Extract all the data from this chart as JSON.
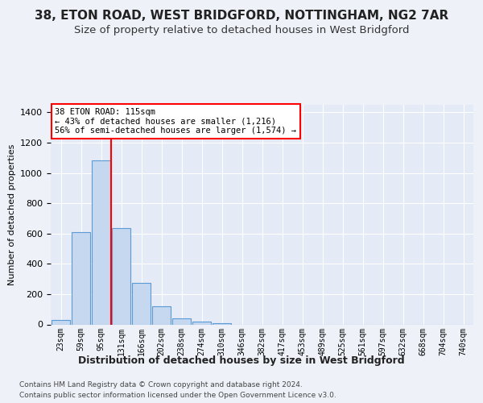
{
  "title": "38, ETON ROAD, WEST BRIDGFORD, NOTTINGHAM, NG2 7AR",
  "subtitle": "Size of property relative to detached houses in West Bridgford",
  "xlabel": "Distribution of detached houses by size in West Bridgford",
  "ylabel": "Number of detached properties",
  "footer_line1": "Contains HM Land Registry data © Crown copyright and database right 2024.",
  "footer_line2": "Contains public sector information licensed under the Open Government Licence v3.0.",
  "annotation_line1": "38 ETON ROAD: 115sqm",
  "annotation_line2": "← 43% of detached houses are smaller (1,216)",
  "annotation_line3": "56% of semi-detached houses are larger (1,574) →",
  "bin_labels": [
    "23sqm",
    "59sqm",
    "95sqm",
    "131sqm",
    "166sqm",
    "202sqm",
    "238sqm",
    "274sqm",
    "310sqm",
    "346sqm",
    "382sqm",
    "417sqm",
    "453sqm",
    "489sqm",
    "525sqm",
    "561sqm",
    "597sqm",
    "632sqm",
    "668sqm",
    "704sqm",
    "740sqm"
  ],
  "bar_values": [
    27,
    610,
    1085,
    635,
    275,
    118,
    38,
    20,
    10,
    0,
    0,
    0,
    0,
    0,
    0,
    0,
    0,
    0,
    0,
    0,
    0
  ],
  "bar_color": "#c5d8f0",
  "bar_edge_color": "#5b9bd5",
  "red_line_x": 2.5,
  "ylim": [
    0,
    1450
  ],
  "yticks": [
    0,
    200,
    400,
    600,
    800,
    1000,
    1200,
    1400
  ],
  "background_color": "#eef2f8",
  "plot_bg_color": "#e4eaf6",
  "grid_color": "#ffffff",
  "title_fontsize": 11,
  "subtitle_fontsize": 9.5
}
